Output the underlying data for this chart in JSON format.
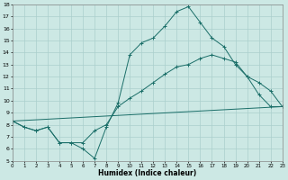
{
  "xlabel": "Humidex (Indice chaleur)",
  "bg_color": "#cce8e4",
  "grid_color": "#aacfcc",
  "line_color": "#1a6e68",
  "xlim": [
    0,
    23
  ],
  "ylim": [
    5,
    18
  ],
  "yticks": [
    5,
    6,
    7,
    8,
    9,
    10,
    11,
    12,
    13,
    14,
    15,
    16,
    17,
    18
  ],
  "xticks": [
    0,
    1,
    2,
    3,
    4,
    5,
    6,
    7,
    8,
    9,
    10,
    11,
    12,
    13,
    14,
    15,
    16,
    17,
    18,
    19,
    20,
    21,
    22,
    23
  ],
  "line1_x": [
    0,
    1,
    2,
    3,
    4,
    5,
    6,
    7,
    8,
    9,
    10,
    11,
    12,
    13,
    14,
    15,
    16,
    17,
    18,
    19,
    20,
    21,
    22,
    23
  ],
  "line1_y": [
    8.3,
    7.8,
    7.5,
    7.8,
    6.5,
    6.5,
    6.0,
    5.2,
    7.8,
    9.8,
    13.8,
    14.8,
    15.2,
    16.2,
    17.4,
    17.8,
    16.5,
    15.2,
    14.5,
    13.0,
    12.0,
    10.5,
    9.5,
    9.5
  ],
  "line2_x": [
    0,
    1,
    2,
    3,
    4,
    5,
    6,
    7,
    8,
    9,
    10,
    11,
    12,
    13,
    14,
    15,
    16,
    17,
    18,
    19,
    20,
    21,
    22,
    23
  ],
  "line2_y": [
    8.3,
    7.8,
    7.5,
    7.8,
    6.5,
    6.5,
    6.5,
    7.5,
    8.0,
    9.5,
    10.2,
    10.8,
    11.5,
    12.2,
    12.8,
    13.0,
    13.5,
    13.8,
    13.5,
    13.2,
    12.0,
    11.5,
    10.8,
    9.5
  ],
  "line3_x": [
    0,
    23
  ],
  "line3_y": [
    8.3,
    9.5
  ]
}
